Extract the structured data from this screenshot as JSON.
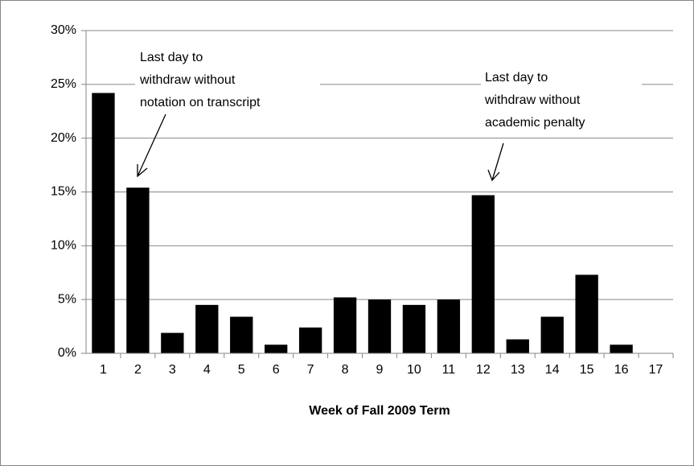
{
  "chart_data": {
    "type": "bar",
    "x_label": "Week of Fall  2009 Term",
    "categories": [
      "1",
      "2",
      "3",
      "4",
      "5",
      "6",
      "7",
      "8",
      "9",
      "10",
      "11",
      "12",
      "13",
      "14",
      "15",
      "16",
      "17"
    ],
    "values": [
      24.2,
      15.4,
      1.9,
      4.5,
      3.4,
      0.8,
      2.4,
      5.2,
      5.0,
      4.5,
      5.0,
      14.7,
      1.3,
      3.4,
      7.3,
      0.8,
      0
    ],
    "color": "#000000",
    "ylim": [
      0,
      30
    ],
    "yticks": [
      {
        "value": 0,
        "label": "0%"
      },
      {
        "value": 5,
        "label": "5%"
      },
      {
        "value": 10,
        "label": "10%"
      },
      {
        "value": 15,
        "label": "15%"
      },
      {
        "value": 20,
        "label": "20%"
      },
      {
        "value": 25,
        "label": "25%"
      },
      {
        "value": 30,
        "label": "30%"
      }
    ],
    "grid": true,
    "annotations": [
      {
        "lines": [
          "Last day to",
          "withdraw without",
          "notation on transcript"
        ]
      },
      {
        "lines": [
          "Last day to",
          "withdraw without",
          "academic penalty"
        ]
      }
    ]
  }
}
